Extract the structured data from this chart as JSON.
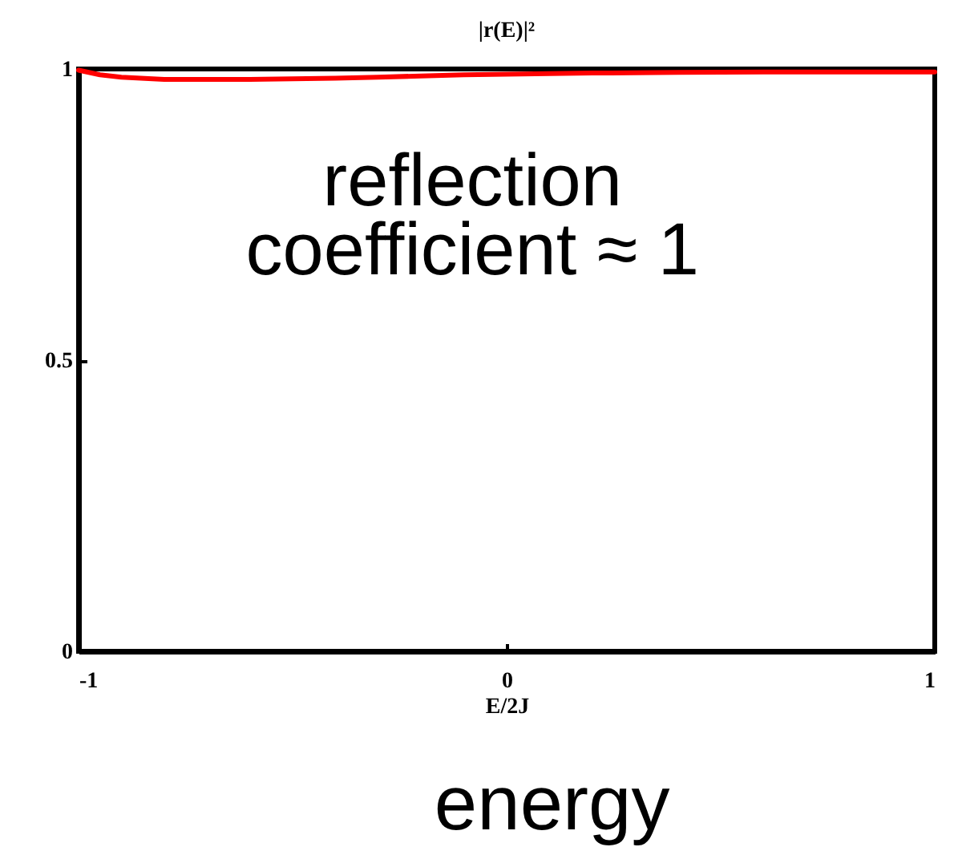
{
  "chart_data": {
    "type": "line",
    "title": "|r(E)|²",
    "xlabel": "E/2J",
    "annotations": [
      "reflection coefficient ≈ 1",
      "energy"
    ],
    "x": [
      -1,
      -0.95,
      -0.9,
      -0.8,
      -0.7,
      -0.6,
      -0.5,
      -0.4,
      -0.3,
      -0.2,
      -0.1,
      0,
      0.2,
      0.4,
      0.6,
      0.8,
      1
    ],
    "series": [
      {
        "color": "#ff0000",
        "values": [
          0.998,
          0.99,
          0.986,
          0.982,
          0.982,
          0.982,
          0.983,
          0.984,
          0.986,
          0.988,
          0.99,
          0.991,
          0.993,
          0.994,
          0.995,
          0.995,
          0.995
        ]
      }
    ],
    "xlim": [
      -1,
      1
    ],
    "ylim": [
      0,
      1
    ],
    "xticks": [
      -1,
      0,
      1
    ],
    "yticks": [
      0,
      0.5,
      1
    ],
    "line_style": "solid"
  }
}
